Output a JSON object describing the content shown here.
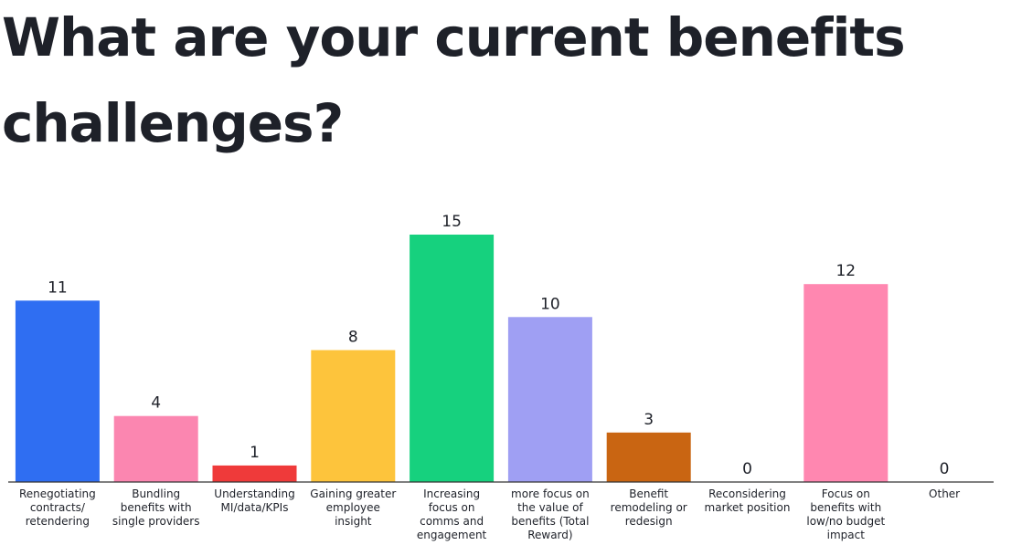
{
  "title_line1": "What are your current benefits",
  "title_line2": "challenges?",
  "chart_data": {
    "type": "bar",
    "categories": [
      "Renegotiating contracts/ retendering",
      "Bundling benefits with single providers",
      "Understanding MI/data/KPIs",
      "Gaining greater employee insight",
      "Increasing focus on comms and engagement",
      "more focus on the value of benefits (Total Reward)",
      "Benefit remodeling or redesign",
      "Reconsidering market position",
      "Focus on benefits with low/no budget impact",
      "Other"
    ],
    "category_lines": [
      [
        "Renegotiating",
        "contracts/",
        "retendering"
      ],
      [
        "Bundling",
        "benefits with",
        "single providers"
      ],
      [
        "Understanding",
        "MI/data/KPIs"
      ],
      [
        "Gaining greater",
        "employee",
        "insight"
      ],
      [
        "Increasing",
        "focus on",
        "comms and",
        "engagement"
      ],
      [
        "more focus on",
        "the value of",
        "benefits (Total",
        "Reward)"
      ],
      [
        "Benefit",
        "remodeling or",
        "redesign"
      ],
      [
        "Reconsidering",
        "market position"
      ],
      [
        "Focus on",
        "benefits with",
        "low/no budget",
        "impact"
      ],
      [
        "Other"
      ]
    ],
    "values": [
      11,
      4,
      1,
      8,
      15,
      10,
      3,
      0,
      12,
      0
    ],
    "colors": [
      "#2f6ef2",
      "#fb86b0",
      "#ef3a3a",
      "#fdc43c",
      "#16d17e",
      "#9f9ff3",
      "#c96512",
      "#ff87b0",
      "#ff87b0",
      "#cccccc"
    ],
    "ylim": [
      0,
      15
    ],
    "grid": false,
    "legend": "none"
  }
}
